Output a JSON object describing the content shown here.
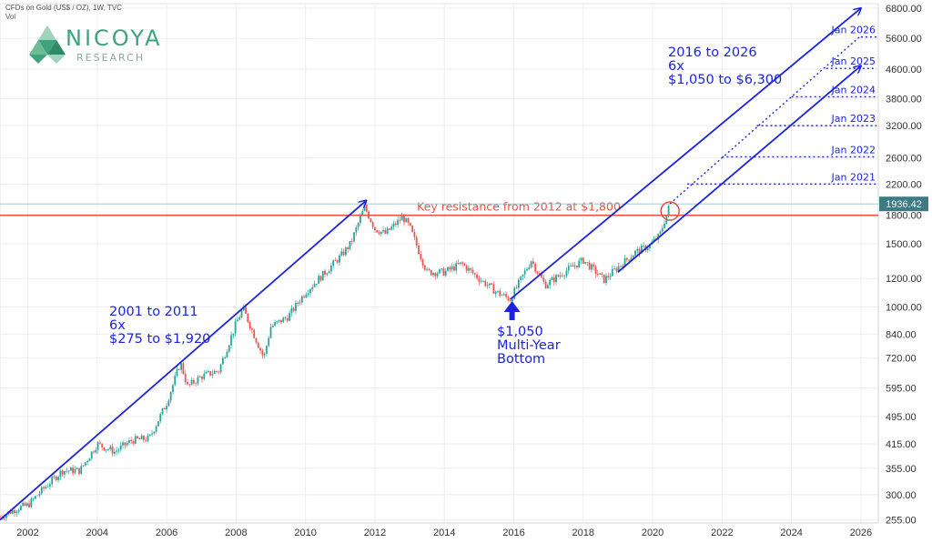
{
  "header": {
    "symbol": "CFDs on Gold (US$ / OZ), 1W, TVC",
    "vol": "Vol"
  },
  "brand": {
    "name": "NICOYA",
    "sub": "RESEARCH"
  },
  "colors": {
    "trend": "#1a23e0",
    "resistance": "#e2534a",
    "up": "#26a69a",
    "down": "#ef5350",
    "price_tag": "#3d7a84",
    "logo_green": "#3fa37f"
  },
  "chart_data": {
    "type": "candlestick",
    "title": "CFDs on Gold (US$ / OZ), 1W, TVC",
    "y_scale": "log",
    "ylim": [
      250,
      7000
    ],
    "xlim": [
      2001.2,
      2026.5
    ],
    "grid": true,
    "y_ticks": [
      255,
      300,
      355,
      415,
      495,
      595,
      720,
      840,
      1000,
      1200,
      1500,
      1800,
      2200,
      2600,
      3200,
      3800,
      4600,
      5600,
      6800
    ],
    "y_tick_labels": [
      "255.00",
      "300.00",
      "355.00",
      "415.00",
      "495.00",
      "595.00",
      "720.00",
      "840.00",
      "1000.00",
      "1200.00",
      "1500.00",
      "1800.00",
      "2200.00",
      "2600.00",
      "3200.00",
      "3800.00",
      "4600.00",
      "5600.00",
      "6800.00"
    ],
    "x_ticks": [
      2002,
      2004,
      2006,
      2008,
      2010,
      2012,
      2014,
      2016,
      2018,
      2020,
      2022,
      2024,
      2026
    ],
    "x_tick_labels": [
      "2002",
      "2004",
      "2006",
      "2008",
      "2010",
      "2012",
      "2014",
      "2016",
      "2018",
      "2020",
      "2022",
      "2024",
      "2026"
    ],
    "last_price": 1936.42,
    "last_price_label": "1936.42",
    "price_path": [
      [
        2001.2,
        260
      ],
      [
        2001.7,
        275
      ],
      [
        2002.0,
        280
      ],
      [
        2002.5,
        315
      ],
      [
        2003.0,
        350
      ],
      [
        2003.5,
        350
      ],
      [
        2004.0,
        415
      ],
      [
        2004.5,
        395
      ],
      [
        2005.0,
        425
      ],
      [
        2005.5,
        430
      ],
      [
        2006.0,
        540
      ],
      [
        2006.4,
        700
      ],
      [
        2006.6,
        600
      ],
      [
        2007.0,
        640
      ],
      [
        2007.5,
        665
      ],
      [
        2008.0,
        900
      ],
      [
        2008.2,
        990
      ],
      [
        2008.8,
        720
      ],
      [
        2009.0,
        880
      ],
      [
        2009.5,
        940
      ],
      [
        2010.0,
        1100
      ],
      [
        2010.5,
        1230
      ],
      [
        2011.0,
        1380
      ],
      [
        2011.3,
        1500
      ],
      [
        2011.7,
        1900
      ],
      [
        2012.0,
        1650
      ],
      [
        2012.3,
        1600
      ],
      [
        2012.8,
        1780
      ],
      [
        2013.0,
        1670
      ],
      [
        2013.3,
        1400
      ],
      [
        2013.5,
        1250
      ],
      [
        2014.0,
        1250
      ],
      [
        2014.5,
        1320
      ],
      [
        2015.0,
        1200
      ],
      [
        2015.5,
        1100
      ],
      [
        2015.9,
        1050
      ],
      [
        2016.5,
        1350
      ],
      [
        2016.9,
        1150
      ],
      [
        2017.5,
        1260
      ],
      [
        2018.0,
        1350
      ],
      [
        2018.6,
        1190
      ],
      [
        2019.0,
        1290
      ],
      [
        2019.5,
        1420
      ],
      [
        2019.9,
        1480
      ],
      [
        2020.2,
        1580
      ],
      [
        2020.5,
        1936
      ]
    ],
    "trend_lines": [
      {
        "name": "2001 to 2011 channel",
        "points": [
          [
            2001.2,
            255
          ],
          [
            2011.75,
            1980
          ]
        ]
      },
      {
        "name": "2016 upper channel",
        "points": [
          [
            2015.9,
            1050
          ],
          [
            2026.0,
            6800
          ]
        ]
      },
      {
        "name": "2016 lower channel",
        "points": [
          [
            2019.0,
            1250
          ],
          [
            2026.0,
            4700
          ]
        ]
      }
    ],
    "projection_line": {
      "points": [
        [
          2020.5,
          1940
        ],
        [
          2026.0,
          5700
        ]
      ]
    },
    "resistance": {
      "value": 1800,
      "label": "Key resistance from 2012 at $1,800"
    },
    "year_markers": [
      {
        "label": "Jan 2021",
        "year": 2021,
        "value": 2200
      },
      {
        "label": "Jan 2022",
        "year": 2022,
        "value": 2620
      },
      {
        "label": "Jan 2023",
        "year": 2023,
        "value": 3200
      },
      {
        "label": "Jan 2024",
        "year": 2024,
        "value": 3850
      },
      {
        "label": "Jan 2025",
        "year": 2025,
        "value": 4620
      },
      {
        "label": "Jan 2026",
        "year": 2026,
        "value": 5650
      }
    ],
    "annotations": {
      "first": [
        "2001 to 2011",
        "6x",
        "$275 to $1,920"
      ],
      "second": [
        "2016 to 2026",
        "6x",
        "$1,050 to $6,300"
      ],
      "bottom": [
        "$1,050",
        "Multi-Year",
        "Bottom"
      ]
    }
  }
}
